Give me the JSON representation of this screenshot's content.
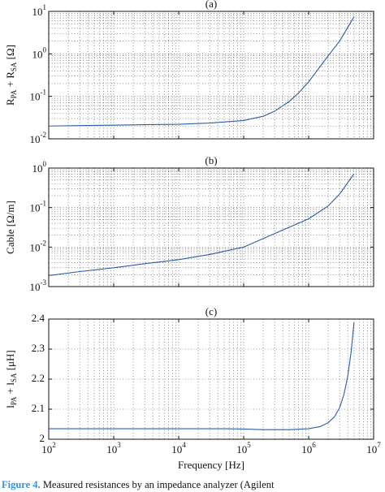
{
  "caption": {
    "label": "Figure 4.",
    "text": "Measured resistances by an impedance analyzer (Agilent"
  },
  "chart_data": [
    {
      "type": "line",
      "title": "(a)",
      "ylabel": "R_PA + R_SA [Ω]",
      "ylabel_main": "R",
      "ylabel_sub1": "PA",
      "ylabel_mid": " + R",
      "ylabel_sub2": "SA",
      "ylabel_unit": " [Ω]",
      "xscale": "log",
      "yscale": "log",
      "xlim": [
        100,
        10000000
      ],
      "ylim": [
        0.01,
        10
      ],
      "grid": true,
      "ytick_exps": [
        -2,
        -1,
        0,
        1
      ],
      "series": [
        {
          "color": "#2a5caa",
          "x": [
            100,
            300,
            1000,
            3000,
            10000,
            30000,
            100000,
            200000,
            300000,
            500000,
            700000,
            1000000,
            2000000,
            3000000,
            5000000
          ],
          "y": [
            0.02,
            0.0205,
            0.021,
            0.0215,
            0.022,
            0.0235,
            0.027,
            0.034,
            0.045,
            0.075,
            0.12,
            0.22,
            0.9,
            2.0,
            7.5
          ]
        }
      ]
    },
    {
      "type": "line",
      "title": "(b)",
      "ylabel": "Cable [Ω/m]",
      "xscale": "log",
      "yscale": "log",
      "xlim": [
        100,
        10000000
      ],
      "ylim": [
        0.001,
        1
      ],
      "grid": true,
      "ytick_exps": [
        -3,
        -2,
        -1,
        0
      ],
      "series": [
        {
          "color": "#2a5caa",
          "x": [
            100,
            300,
            1000,
            3000,
            10000,
            30000,
            100000,
            300000,
            1000000,
            2000000,
            3000000,
            5000000
          ],
          "y": [
            0.0019,
            0.0024,
            0.003,
            0.0038,
            0.0048,
            0.0065,
            0.01,
            0.022,
            0.052,
            0.11,
            0.22,
            0.72
          ]
        }
      ]
    },
    {
      "type": "line",
      "title": "(c)",
      "ylabel": "l_PA + l_SA [μH]",
      "ylabel_main": "l",
      "ylabel_sub1": "PA",
      "ylabel_mid": " + l",
      "ylabel_sub2": "SA",
      "ylabel_unit": " [μH]",
      "xlabel": "Frequency [Hz]",
      "xscale": "log",
      "yscale": "linear",
      "xlim": [
        100,
        10000000
      ],
      "ylim": [
        2.0,
        2.4
      ],
      "grid": true,
      "yticks": [
        "2",
        "2.1",
        "2.2",
        "2.3",
        "2.4"
      ],
      "ytick_values": [
        2.0,
        2.1,
        2.2,
        2.3,
        2.4
      ],
      "xtick_exps": [
        2,
        3,
        4,
        5,
        6,
        7
      ],
      "series": [
        {
          "color": "#2a5caa",
          "x": [
            100,
            1000,
            10000,
            50000,
            100000,
            200000,
            500000,
            1000000,
            1500000,
            2000000,
            2500000,
            3000000,
            3500000,
            4000000,
            4500000,
            5000000
          ],
          "y": [
            2.035,
            2.035,
            2.035,
            2.035,
            2.034,
            2.032,
            2.032,
            2.035,
            2.042,
            2.055,
            2.075,
            2.105,
            2.15,
            2.21,
            2.29,
            2.39
          ]
        }
      ]
    }
  ]
}
